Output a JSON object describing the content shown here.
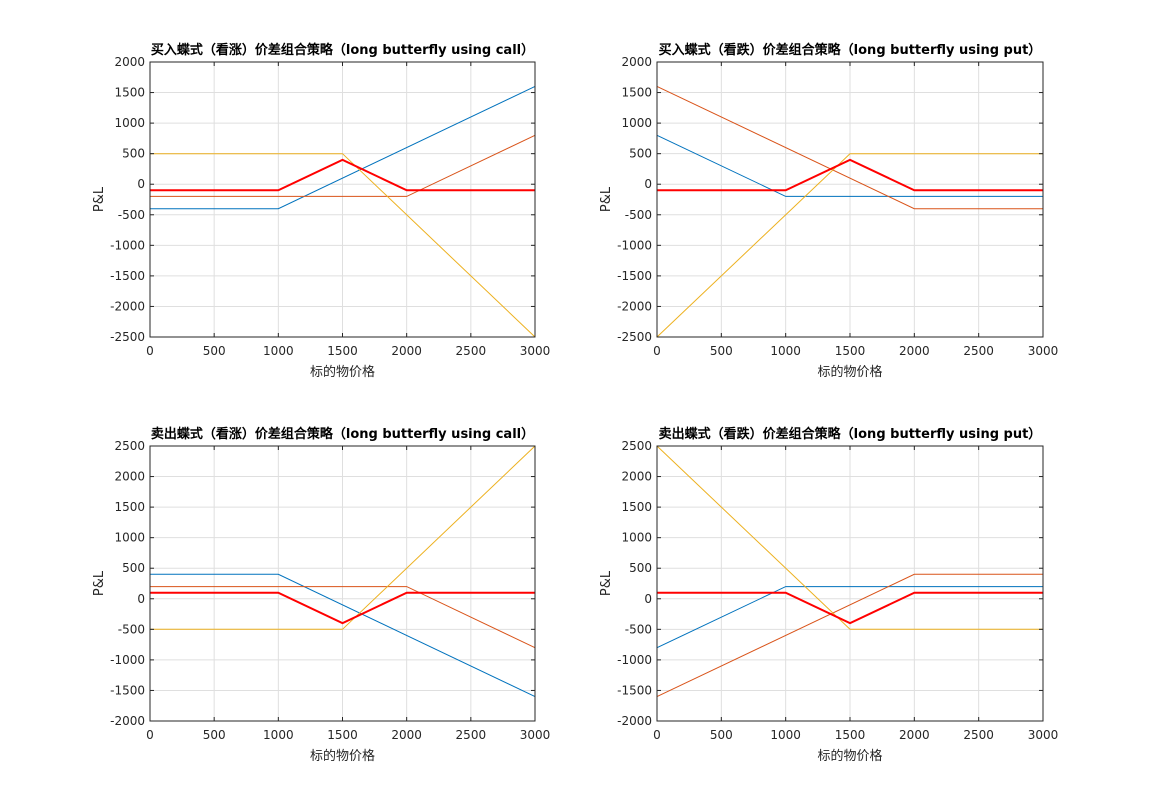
{
  "chart_data": [
    {
      "type": "line",
      "title": "买入蝶式（看涨）价差组合策略（long butterfly using call）",
      "xlabel": "标的物价格",
      "ylabel": "P&L",
      "xlim": [
        0,
        3000
      ],
      "ylim": [
        -2500,
        2000
      ],
      "xticks": [
        0,
        500,
        1000,
        1500,
        2000,
        2500,
        3000
      ],
      "yticks": [
        -2500,
        -2000,
        -1500,
        -1000,
        -500,
        0,
        500,
        1000,
        1500,
        2000
      ],
      "grid": true,
      "series": [
        {
          "color": "#0072BD",
          "width": 1,
          "points": [
            [
              0,
              -400
            ],
            [
              1000,
              -400
            ],
            [
              3000,
              1600
            ]
          ]
        },
        {
          "color": "#D95319",
          "width": 1,
          "points": [
            [
              0,
              -200
            ],
            [
              2000,
              -200
            ],
            [
              3000,
              800
            ]
          ]
        },
        {
          "color": "#EDB120",
          "width": 1,
          "points": [
            [
              0,
              500
            ],
            [
              1500,
              500
            ],
            [
              3000,
              -2500
            ]
          ]
        },
        {
          "color": "#FF0000",
          "width": 2,
          "points": [
            [
              0,
              -100
            ],
            [
              1000,
              -100
            ],
            [
              1500,
              400
            ],
            [
              2000,
              -100
            ],
            [
              3000,
              -100
            ]
          ]
        }
      ]
    },
    {
      "type": "line",
      "title": "买入蝶式（看跌）价差组合策略（long butterfly using put）",
      "xlabel": "标的物价格",
      "ylabel": "P&L",
      "xlim": [
        0,
        3000
      ],
      "ylim": [
        -2500,
        2000
      ],
      "xticks": [
        0,
        500,
        1000,
        1500,
        2000,
        2500,
        3000
      ],
      "yticks": [
        -2500,
        -2000,
        -1500,
        -1000,
        -500,
        0,
        500,
        1000,
        1500,
        2000
      ],
      "grid": true,
      "series": [
        {
          "color": "#0072BD",
          "width": 1,
          "points": [
            [
              0,
              800
            ],
            [
              1000,
              -200
            ],
            [
              3000,
              -200
            ]
          ]
        },
        {
          "color": "#D95319",
          "width": 1,
          "points": [
            [
              0,
              1600
            ],
            [
              2000,
              -400
            ],
            [
              3000,
              -400
            ]
          ]
        },
        {
          "color": "#EDB120",
          "width": 1,
          "points": [
            [
              0,
              -2500
            ],
            [
              1500,
              500
            ],
            [
              3000,
              500
            ]
          ]
        },
        {
          "color": "#FF0000",
          "width": 2,
          "points": [
            [
              0,
              -100
            ],
            [
              1000,
              -100
            ],
            [
              1500,
              400
            ],
            [
              2000,
              -100
            ],
            [
              3000,
              -100
            ]
          ]
        }
      ]
    },
    {
      "type": "line",
      "title": "卖出蝶式（看涨）价差组合策略（long butterfly using call）",
      "xlabel": "标的物价格",
      "ylabel": "P&L",
      "xlim": [
        0,
        3000
      ],
      "ylim": [
        -2000,
        2500
      ],
      "xticks": [
        0,
        500,
        1000,
        1500,
        2000,
        2500,
        3000
      ],
      "yticks": [
        -2000,
        -1500,
        -1000,
        -500,
        0,
        500,
        1000,
        1500,
        2000,
        2500
      ],
      "grid": true,
      "series": [
        {
          "color": "#0072BD",
          "width": 1,
          "points": [
            [
              0,
              400
            ],
            [
              1000,
              400
            ],
            [
              3000,
              -1600
            ]
          ]
        },
        {
          "color": "#D95319",
          "width": 1,
          "points": [
            [
              0,
              200
            ],
            [
              2000,
              200
            ],
            [
              3000,
              -800
            ]
          ]
        },
        {
          "color": "#EDB120",
          "width": 1,
          "points": [
            [
              0,
              -500
            ],
            [
              1500,
              -500
            ],
            [
              3000,
              2500
            ]
          ]
        },
        {
          "color": "#FF0000",
          "width": 2,
          "points": [
            [
              0,
              100
            ],
            [
              1000,
              100
            ],
            [
              1500,
              -400
            ],
            [
              2000,
              100
            ],
            [
              3000,
              100
            ]
          ]
        }
      ]
    },
    {
      "type": "line",
      "title": "卖出蝶式（看跌）价差组合策略（long butterfly using put）",
      "xlabel": "标的物价格",
      "ylabel": "P&L",
      "xlim": [
        0,
        3000
      ],
      "ylim": [
        -2000,
        2500
      ],
      "xticks": [
        0,
        500,
        1000,
        1500,
        2000,
        2500,
        3000
      ],
      "yticks": [
        -2000,
        -1500,
        -1000,
        -500,
        0,
        500,
        1000,
        1500,
        2000,
        2500
      ],
      "grid": true,
      "series": [
        {
          "color": "#0072BD",
          "width": 1,
          "points": [
            [
              0,
              -800
            ],
            [
              1000,
              200
            ],
            [
              3000,
              200
            ]
          ]
        },
        {
          "color": "#D95319",
          "width": 1,
          "points": [
            [
              0,
              -1600
            ],
            [
              2000,
              400
            ],
            [
              3000,
              400
            ]
          ]
        },
        {
          "color": "#EDB120",
          "width": 1,
          "points": [
            [
              0,
              2500
            ],
            [
              1500,
              -500
            ],
            [
              3000,
              -500
            ]
          ]
        },
        {
          "color": "#FF0000",
          "width": 2,
          "points": [
            [
              0,
              100
            ],
            [
              1000,
              100
            ],
            [
              1500,
              -400
            ],
            [
              2000,
              100
            ],
            [
              3000,
              100
            ]
          ]
        }
      ]
    }
  ]
}
